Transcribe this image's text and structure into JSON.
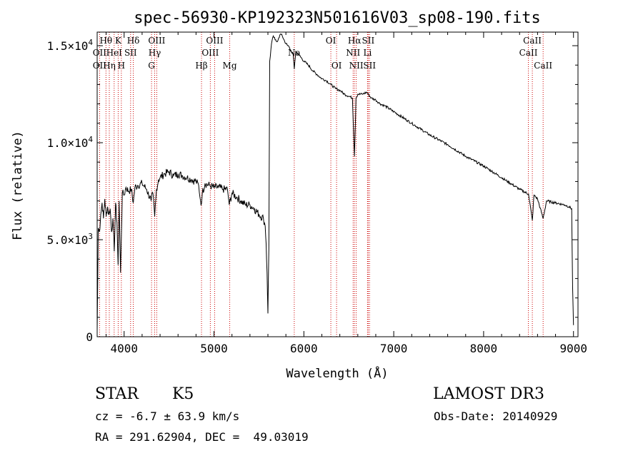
{
  "chart_data": {
    "type": "line",
    "title": "spec-56930-KP192323N501616V03_sp08-190.fits",
    "xlabel": "Wavelength (Å)",
    "ylabel": "Flux (relative)",
    "xlim": [
      3700,
      9050
    ],
    "ylim": [
      0,
      15700
    ],
    "x_ticks": [
      4000,
      5000,
      6000,
      7000,
      8000,
      9000
    ],
    "x_tick_labels": [
      "4000",
      "5000",
      "6000",
      "7000",
      "8000",
      "9000"
    ],
    "y_ticks": [
      0,
      5000,
      10000,
      15000
    ],
    "y_tick_labels": [
      {
        "mant": "0",
        "exp": ""
      },
      {
        "mant": "5.0×10",
        "exp": "3"
      },
      {
        "mant": "1.0×10",
        "exp": "4"
      },
      {
        "mant": "1.5×10",
        "exp": "4"
      }
    ],
    "series": [
      {
        "name": "spectrum",
        "x": [
          3700,
          3712,
          3725,
          3740,
          3755,
          3770,
          3785,
          3800,
          3815,
          3830,
          3845,
          3860,
          3875,
          3890,
          3905,
          3920,
          3933,
          3945,
          3960,
          3968,
          3980,
          4000,
          4020,
          4050,
          4080,
          4102,
          4120,
          4150,
          4200,
          4250,
          4300,
          4320,
          4340,
          4360,
          4383,
          4400,
          4450,
          4500,
          4550,
          4600,
          4650,
          4700,
          4750,
          4800,
          4830,
          4850,
          4862,
          4870,
          4900,
          4950,
          5000,
          5050,
          5100,
          5150,
          5170,
          5200,
          5250,
          5300,
          5350,
          5400,
          5450,
          5500,
          5550,
          5570,
          5580,
          5590,
          5600,
          5610,
          5620,
          5640,
          5660,
          5680,
          5700,
          5720,
          5740,
          5760,
          5780,
          5800,
          5820,
          5840,
          5860,
          5880,
          5893,
          5910,
          5950,
          6000,
          6050,
          6100,
          6150,
          6200,
          6250,
          6300,
          6350,
          6400,
          6450,
          6500,
          6540,
          6563,
          6580,
          6600,
          6650,
          6700,
          6750,
          6800,
          6850,
          6900,
          7000,
          7200,
          7400,
          7600,
          7800,
          8000,
          8200,
          8400,
          8500,
          8542,
          8560,
          8600,
          8662,
          8700,
          8800,
          8900,
          8950,
          8980,
          8990,
          9000
        ],
        "values": [
          300,
          5600,
          5400,
          6300,
          6900,
          6100,
          7100,
          6200,
          6700,
          6300,
          6600,
          5400,
          6100,
          4400,
          6900,
          5900,
          3700,
          7000,
          3300,
          4900,
          7400,
          7300,
          7700,
          7500,
          7600,
          6900,
          7700,
          7800,
          7900,
          7600,
          7000,
          7400,
          6200,
          7600,
          8100,
          8200,
          8400,
          8500,
          8300,
          8400,
          8300,
          8200,
          8100,
          8000,
          7800,
          7000,
          6900,
          7400,
          7900,
          7800,
          7700,
          7700,
          7600,
          7600,
          6800,
          7400,
          7200,
          7000,
          6800,
          6800,
          6600,
          6300,
          6100,
          5700,
          4800,
          3300,
          1200,
          4500,
          14200,
          15100,
          15500,
          15300,
          15200,
          15400,
          15600,
          15500,
          15300,
          15100,
          15000,
          14900,
          14700,
          14600,
          13800,
          14700,
          14500,
          14200,
          14000,
          13700,
          13500,
          13300,
          13200,
          13000,
          12800,
          12700,
          12500,
          12400,
          12300,
          9300,
          12300,
          12500,
          12500,
          12600,
          12300,
          12200,
          12000,
          11900,
          11600,
          11000,
          10400,
          9900,
          9300,
          8800,
          8200,
          7600,
          7350,
          6000,
          7300,
          7100,
          6100,
          7000,
          6900,
          6800,
          6700,
          6600,
          2500,
          600
        ]
      }
    ],
    "lines": [
      {
        "name": "OII",
        "wave": 3727
      },
      {
        "name": "Hθ",
        "wave": 3798
      },
      {
        "name": "Hη",
        "wave": 3835
      },
      {
        "name": "HeI",
        "wave": 3889
      },
      {
        "name": "K",
        "wave": 3934
      },
      {
        "name": "H",
        "wave": 3969
      },
      {
        "name": "Hδ",
        "wave": 4102
      },
      {
        "name": "SII",
        "wave": 4072
      },
      {
        "name": "OIII",
        "wave": 4363
      },
      {
        "name": "Hγ",
        "wave": 4340
      },
      {
        "name": "G",
        "wave": 4305
      },
      {
        "name": "Hβ",
        "wave": 4861
      },
      {
        "name": "OIII",
        "wave": 4959
      },
      {
        "name": "OIII",
        "wave": 5007
      },
      {
        "name": "Mg",
        "wave": 5175
      },
      {
        "name": "Na",
        "wave": 5893
      },
      {
        "name": "OI",
        "wave": 6300
      },
      {
        "name": "OI",
        "wave": 6364
      },
      {
        "name": "NII",
        "wave": 6548
      },
      {
        "name": "Hα",
        "wave": 6563
      },
      {
        "name": "NII",
        "wave": 6583
      },
      {
        "name": "Li",
        "wave": 6708
      },
      {
        "name": "SII",
        "wave": 6716
      },
      {
        "name": "SII",
        "wave": 6731
      },
      {
        "name": "CaII",
        "wave": 8498
      },
      {
        "name": "CaII",
        "wave": 8542
      },
      {
        "name": "CaII",
        "wave": 8662
      }
    ],
    "line_labels": [
      {
        "text": "Hθ",
        "wave": 3798,
        "row": 1
      },
      {
        "text": "K",
        "wave": 3934,
        "row": 1
      },
      {
        "text": "Hδ",
        "wave": 4102,
        "row": 1
      },
      {
        "text": "OIII",
        "wave": 4363,
        "row": 1
      },
      {
        "text": "OIII",
        "wave": 5007,
        "row": 1
      },
      {
        "text": "OI",
        "wave": 6300,
        "row": 1
      },
      {
        "text": "Hα",
        "wave": 6563,
        "row": 1
      },
      {
        "text": "SII",
        "wave": 6716,
        "row": 1
      },
      {
        "text": "CaII",
        "wave": 8542,
        "row": 1
      },
      {
        "text": "OII",
        "wave": 3727,
        "row": 2
      },
      {
        "text": "HeI",
        "wave": 3889,
        "row": 2
      },
      {
        "text": "SII",
        "wave": 4072,
        "row": 2
      },
      {
        "text": "Hγ",
        "wave": 4340,
        "row": 2
      },
      {
        "text": "OIII",
        "wave": 4959,
        "row": 2
      },
      {
        "text": "Na",
        "wave": 5893,
        "row": 2
      },
      {
        "text": "NII",
        "wave": 6548,
        "row": 2
      },
      {
        "text": "Li",
        "wave": 6708,
        "row": 2
      },
      {
        "text": "CaII",
        "wave": 8498,
        "row": 2
      },
      {
        "text": "OII",
        "wave": 3727,
        "row": 3
      },
      {
        "text": "Hη",
        "wave": 3835,
        "row": 3
      },
      {
        "text": "H",
        "wave": 3969,
        "row": 3
      },
      {
        "text": "G",
        "wave": 4305,
        "row": 3
      },
      {
        "text": "Hβ",
        "wave": 4861,
        "row": 3
      },
      {
        "text": "Mg",
        "wave": 5175,
        "row": 3
      },
      {
        "text": "OI",
        "wave": 6364,
        "row": 3
      },
      {
        "text": "NII",
        "wave": 6583,
        "row": 3
      },
      {
        "text": "SII",
        "wave": 6731,
        "row": 3
      },
      {
        "text": "CaII",
        "wave": 8662,
        "row": 3
      }
    ],
    "colors": {
      "spectrum": "#000000",
      "lines": "#cc0000",
      "axes": "#000000"
    }
  },
  "info": {
    "object_type": "STAR",
    "subclass": "K5",
    "survey": "LAMOST DR3",
    "cz": "cz = -6.7 ± 63.9 km/s",
    "obs_date": "Obs-Date: 20140929",
    "coords": "RA = 291.62904, DEC =  49.03019"
  }
}
